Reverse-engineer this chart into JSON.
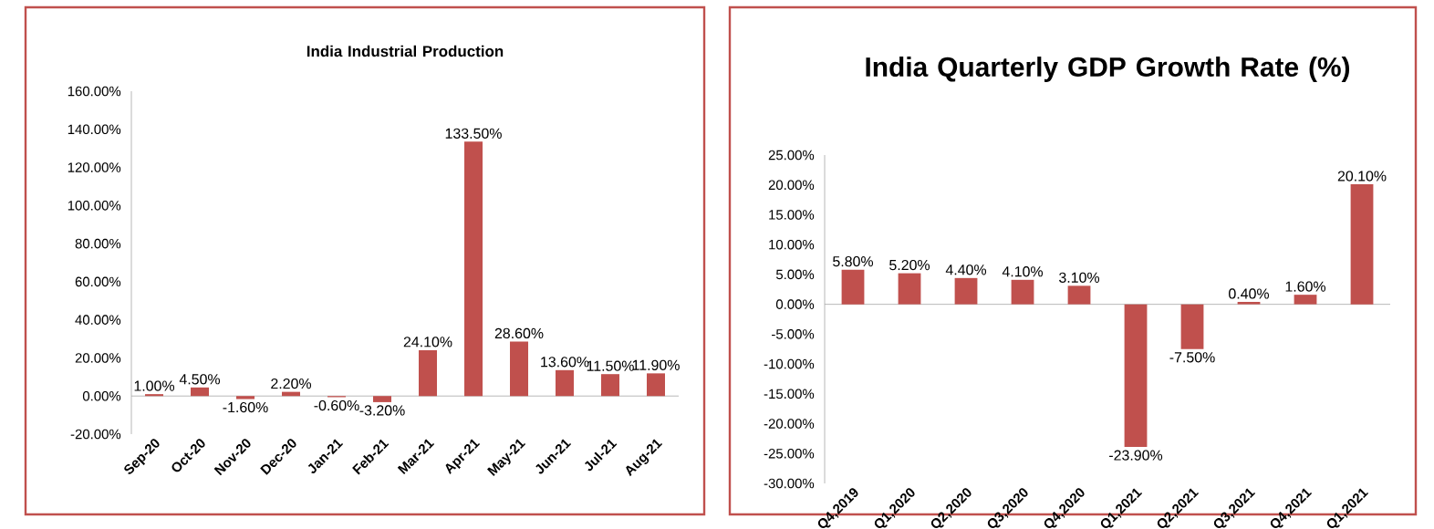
{
  "chart_data": [
    {
      "type": "bar",
      "title": "India Industrial Production",
      "categories": [
        "Sep-20",
        "Oct-20",
        "Nov-20",
        "Dec-20",
        "Jan-21",
        "Feb-21",
        "Mar-21",
        "Apr-21",
        "May-21",
        "Jun-21",
        "Jul-21",
        "Aug-21"
      ],
      "values": [
        1.0,
        4.5,
        -1.6,
        2.2,
        -0.6,
        -3.2,
        24.1,
        133.5,
        28.6,
        13.6,
        11.5,
        11.9
      ],
      "value_labels": [
        "1.00%",
        "4.50%",
        "-1.60%",
        "2.20%",
        "-0.60%",
        "-3.20%",
        "24.10%",
        "133.50%",
        "28.60%",
        "13.60%",
        "11.50%",
        "11.90%"
      ],
      "color": "#c0504d",
      "ylim": [
        -20,
        160
      ],
      "yticks": [
        {
          "value": -20,
          "label": "-20.00%"
        },
        {
          "value": 0,
          "label": "0.00%"
        },
        {
          "value": 20,
          "label": "20.00%"
        },
        {
          "value": 40,
          "label": "40.00%"
        },
        {
          "value": 60,
          "label": "60.00%"
        },
        {
          "value": 80,
          "label": "80.00%"
        },
        {
          "value": 100,
          "label": "100.00%"
        },
        {
          "value": 120,
          "label": "120.00%"
        },
        {
          "value": 140,
          "label": "140.00%"
        },
        {
          "value": 160,
          "label": "160.00%"
        }
      ]
    },
    {
      "type": "bar",
      "title": "India Quarterly GDP Growth Rate (%)",
      "categories": [
        "Q4,2019",
        "Q1,2020",
        "Q2,2020",
        "Q3,2020",
        "Q4,2020",
        "Q1,2021",
        "Q2,2021",
        "Q3,2021",
        "Q4,2021",
        "Q1,2021"
      ],
      "values": [
        5.8,
        5.2,
        4.4,
        4.1,
        3.1,
        -23.9,
        -7.5,
        0.4,
        1.6,
        20.1
      ],
      "value_labels": [
        "5.80%",
        "5.20%",
        "4.40%",
        "4.10%",
        "3.10%",
        "-23.90%",
        "-7.50%",
        "0.40%",
        "1.60%",
        "20.10%"
      ],
      "color": "#c0504d",
      "ylim": [
        -30,
        25
      ],
      "yticks": [
        {
          "value": -30,
          "label": "-30.00%"
        },
        {
          "value": -25,
          "label": "-25.00%"
        },
        {
          "value": -20,
          "label": "-20.00%"
        },
        {
          "value": -15,
          "label": "-15.00%"
        },
        {
          "value": -10,
          "label": "-10.00%"
        },
        {
          "value": -5,
          "label": "-5.00%"
        },
        {
          "value": 0,
          "label": "0.00%"
        },
        {
          "value": 5,
          "label": "5.00%"
        },
        {
          "value": 10,
          "label": "10.00%"
        },
        {
          "value": 15,
          "label": "15.00%"
        },
        {
          "value": 20,
          "label": "20.00%"
        },
        {
          "value": 25,
          "label": "25.00%"
        }
      ]
    }
  ]
}
